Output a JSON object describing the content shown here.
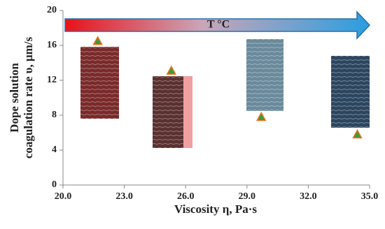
{
  "chart_data": {
    "type": "scatter",
    "xlabel": "Viscosity η, Pa·s",
    "ylabel": [
      "Dope solution",
      "coagulation rate υ, μm/s"
    ],
    "annotation": "T °C",
    "x": [
      21.7,
      25.3,
      29.7,
      34.4
    ],
    "values": [
      16.5,
      13.1,
      7.8,
      5.8
    ],
    "marker_color": "#3d9a3a",
    "marker_edge_color": "#e8741e",
    "xlim": [
      20,
      35
    ],
    "xticks": [
      {
        "value": 20,
        "label": "20.0"
      },
      {
        "value": 23,
        "label": "23.0"
      },
      {
        "value": 26,
        "label": "26.0"
      },
      {
        "value": 29,
        "label": "29.0"
      },
      {
        "value": 32,
        "label": "32.0"
      },
      {
        "value": 35,
        "label": "35.0"
      }
    ],
    "ylim": [
      0,
      20
    ],
    "yticks": [
      0,
      4,
      8,
      12,
      16,
      20
    ],
    "grid": false
  }
}
